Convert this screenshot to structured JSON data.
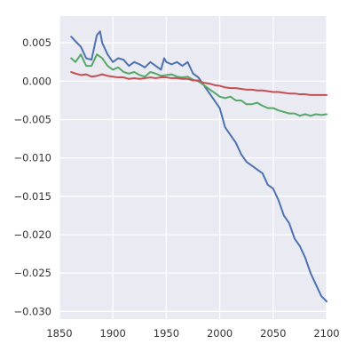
{
  "chart_data": {
    "type": "line",
    "title": "",
    "xlabel": "",
    "ylabel": "",
    "xlim": [
      1850,
      2100
    ],
    "ylim": [
      -0.031,
      0.0085
    ],
    "grid": true,
    "legend": "none",
    "x_ticks": [
      1850,
      1900,
      1950,
      2000,
      2050,
      2100
    ],
    "x_tick_labels": [
      "1850",
      "1900",
      "1950",
      "2000",
      "2050",
      "2100"
    ],
    "y_ticks": [
      0.005,
      0.0,
      -0.005,
      -0.01,
      -0.015,
      -0.02,
      -0.025,
      -0.03
    ],
    "y_tick_labels": [
      "0.005",
      "0.000",
      "−0.005",
      "−0.010",
      "−0.015",
      "−0.020",
      "−0.025",
      "−0.030"
    ],
    "colors": {
      "background": "#eaeaf2",
      "grid": "#ffffff",
      "blue": "#4c72b0",
      "green": "#55a868",
      "red": "#c44e52"
    },
    "series": [
      {
        "color": "#4c72b0",
        "x": [
          1861,
          1865,
          1870,
          1875,
          1880,
          1885,
          1888,
          1890,
          1895,
          1900,
          1905,
          1910,
          1915,
          1920,
          1925,
          1930,
          1935,
          1940,
          1945,
          1948,
          1950,
          1955,
          1960,
          1965,
          1970,
          1975,
          1980,
          1985,
          1990,
          1995,
          2000,
          2005,
          2010,
          2015,
          2020,
          2025,
          2030,
          2035,
          2040,
          2045,
          2050,
          2055,
          2060,
          2065,
          2070,
          2075,
          2080,
          2085,
          2090,
          2095,
          2100
        ],
        "y": [
          0.0058,
          0.0052,
          0.0045,
          0.003,
          0.0028,
          0.006,
          0.0065,
          0.005,
          0.0035,
          0.0025,
          0.003,
          0.0028,
          0.002,
          0.0025,
          0.0022,
          0.0018,
          0.0025,
          0.002,
          0.0015,
          0.003,
          0.0025,
          0.0022,
          0.0025,
          0.002,
          0.0025,
          0.001,
          0.0005,
          -0.0005,
          -0.0015,
          -0.0025,
          -0.0035,
          -0.006,
          -0.007,
          -0.008,
          -0.0095,
          -0.0105,
          -0.011,
          -0.0115,
          -0.012,
          -0.0135,
          -0.014,
          -0.0155,
          -0.0175,
          -0.0185,
          -0.0205,
          -0.0215,
          -0.023,
          -0.025,
          -0.0265,
          -0.028,
          -0.0287
        ]
      },
      {
        "color": "#55a868",
        "x": [
          1861,
          1865,
          1870,
          1875,
          1880,
          1885,
          1890,
          1895,
          1900,
          1905,
          1910,
          1915,
          1920,
          1925,
          1930,
          1935,
          1940,
          1945,
          1950,
          1955,
          1960,
          1965,
          1970,
          1975,
          1980,
          1985,
          1990,
          1995,
          2000,
          2005,
          2010,
          2015,
          2020,
          2025,
          2030,
          2035,
          2040,
          2045,
          2050,
          2055,
          2060,
          2065,
          2070,
          2075,
          2080,
          2085,
          2090,
          2095,
          2100
        ],
        "y": [
          0.003,
          0.0025,
          0.0035,
          0.002,
          0.002,
          0.0035,
          0.003,
          0.002,
          0.0015,
          0.0018,
          0.0012,
          0.001,
          0.0012,
          0.0008,
          0.0006,
          0.0012,
          0.001,
          0.0007,
          0.0008,
          0.0009,
          0.0006,
          0.0005,
          0.0006,
          0.0002,
          0.0,
          -0.0005,
          -0.001,
          -0.0015,
          -0.002,
          -0.0022,
          -0.002,
          -0.0025,
          -0.0025,
          -0.003,
          -0.003,
          -0.0028,
          -0.0032,
          -0.0035,
          -0.0035,
          -0.0038,
          -0.004,
          -0.0042,
          -0.0042,
          -0.0045,
          -0.0043,
          -0.0045,
          -0.0043,
          -0.0044,
          -0.0043
        ]
      },
      {
        "color": "#c44e52",
        "x": [
          1861,
          1865,
          1870,
          1875,
          1880,
          1885,
          1890,
          1895,
          1900,
          1905,
          1910,
          1915,
          1920,
          1925,
          1930,
          1935,
          1940,
          1945,
          1950,
          1955,
          1960,
          1965,
          1970,
          1975,
          1980,
          1985,
          1990,
          1995,
          2000,
          2005,
          2010,
          2015,
          2020,
          2025,
          2030,
          2035,
          2040,
          2045,
          2050,
          2055,
          2060,
          2065,
          2070,
          2075,
          2080,
          2085,
          2090,
          2095,
          2100
        ],
        "y": [
          0.0012,
          0.001,
          0.0008,
          0.0009,
          0.0006,
          0.0007,
          0.0009,
          0.0007,
          0.0006,
          0.0005,
          0.0005,
          0.0003,
          0.0004,
          0.0003,
          0.0004,
          0.0005,
          0.0004,
          0.0005,
          0.0005,
          0.0004,
          0.0004,
          0.0003,
          0.0003,
          0.0001,
          0.0001,
          -0.0002,
          -0.0003,
          -0.0005,
          -0.0006,
          -0.0008,
          -0.0009,
          -0.0009,
          -0.001,
          -0.0011,
          -0.0011,
          -0.0012,
          -0.0012,
          -0.0013,
          -0.0014,
          -0.0014,
          -0.0015,
          -0.0016,
          -0.0016,
          -0.0017,
          -0.0017,
          -0.0018,
          -0.0018,
          -0.0018,
          -0.0018
        ]
      }
    ]
  }
}
